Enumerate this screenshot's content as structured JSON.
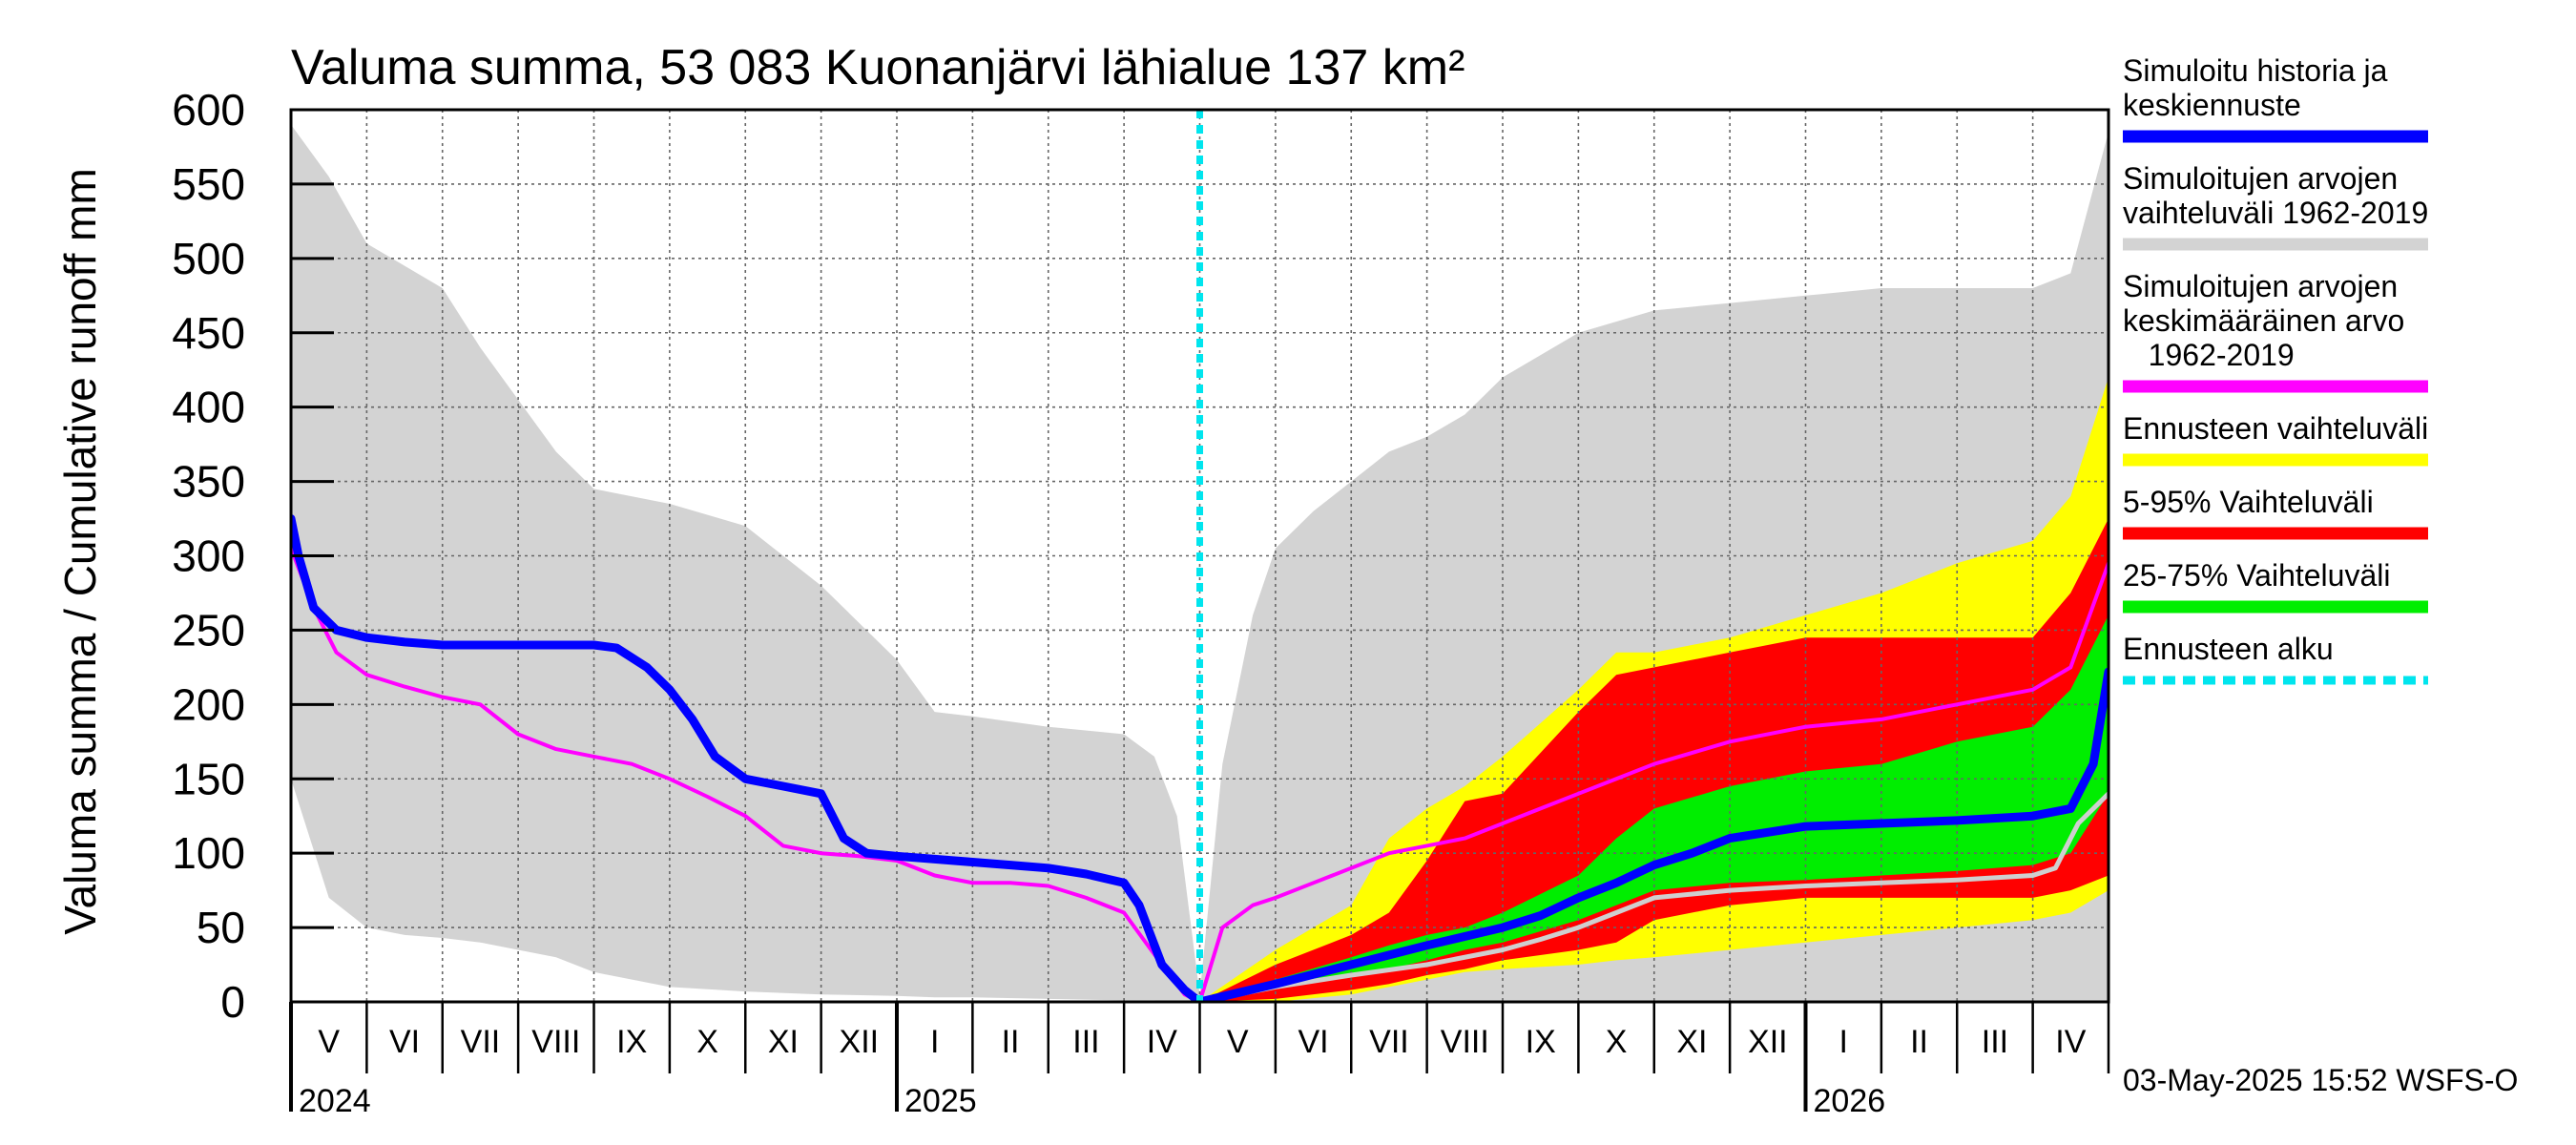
{
  "chart_data": {
    "type": "area",
    "title": "Valuma summa, 53 083 Kuonanjärvi lähialue 137 km²",
    "ylabel": "Valuma summa / Cumulative runoff    mm",
    "ylim": [
      0,
      600
    ],
    "yticks": [
      0,
      50,
      100,
      150,
      200,
      250,
      300,
      350,
      400,
      450,
      500,
      550,
      600
    ],
    "grid": true,
    "x_axis": {
      "unit": "month index from 1 May 2024",
      "range": [
        0,
        24
      ],
      "months": [
        "V",
        "VI",
        "VII",
        "VIII",
        "IX",
        "X",
        "XI",
        "XII",
        "I",
        "II",
        "III",
        "IV",
        "V",
        "VI",
        "VII",
        "VIII",
        "IX",
        "X",
        "XI",
        "XII",
        "I",
        "II",
        "III",
        "IV"
      ],
      "years": [
        {
          "label": "2024",
          "x": 0
        },
        {
          "label": "2025",
          "x": 8
        },
        {
          "label": "2026",
          "x": 20
        }
      ]
    },
    "forecast_start": 12,
    "colors": {
      "hist_range": "#d3d3d3",
      "forecast_range": "#ffff00",
      "p5_95": "#ff0000",
      "p25_75": "#00ee00",
      "simulated": "#0000ff",
      "mean": "#ff00ff",
      "median_forecast": "#cfcfcf",
      "forecast_start": "#00e5ee"
    },
    "series": [
      {
        "name": "hist_range",
        "kind": "band",
        "x": [
          0,
          0.5,
          1,
          1.5,
          2,
          2.5,
          3,
          3.5,
          4,
          5,
          6,
          7,
          8,
          8.5,
          9,
          10,
          11,
          11.4,
          11.7,
          12,
          12.3,
          12.7,
          13,
          13.5,
          14,
          14.5,
          15,
          15.5,
          16,
          17,
          18,
          19,
          20,
          21,
          22,
          23,
          23.5,
          24
        ],
        "upper": [
          590,
          555,
          510,
          495,
          480,
          440,
          405,
          370,
          345,
          335,
          320,
          280,
          230,
          195,
          192,
          185,
          180,
          165,
          125,
          5,
          160,
          260,
          305,
          330,
          350,
          370,
          380,
          395,
          420,
          450,
          465,
          470,
          475,
          480,
          480,
          480,
          490,
          585
        ],
        "lower": [
          150,
          70,
          50,
          45,
          43,
          40,
          35,
          30,
          20,
          10,
          7,
          5,
          4,
          3,
          3,
          2,
          1,
          1,
          0,
          0,
          0,
          0,
          0,
          0,
          0,
          0,
          0,
          0,
          0,
          0,
          0,
          0,
          0,
          0,
          0,
          0,
          0,
          0
        ]
      },
      {
        "name": "forecast_range",
        "kind": "band",
        "x": [
          12,
          13,
          14,
          14.5,
          15,
          15.5,
          16,
          17,
          17.5,
          18,
          19,
          20,
          21,
          22,
          23,
          23.5,
          24
        ],
        "upper": [
          0,
          35,
          65,
          110,
          130,
          145,
          165,
          210,
          235,
          235,
          245,
          260,
          275,
          295,
          310,
          340,
          420
        ],
        "lower": [
          0,
          0,
          5,
          10,
          15,
          20,
          22,
          25,
          28,
          30,
          35,
          40,
          45,
          50,
          55,
          60,
          75
        ]
      },
      {
        "name": "p5_95",
        "kind": "band",
        "x": [
          12,
          13,
          14,
          14.5,
          15,
          15.5,
          16,
          17,
          17.5,
          18,
          19,
          20,
          21,
          22,
          23,
          23.5,
          24
        ],
        "upper": [
          0,
          25,
          45,
          60,
          95,
          135,
          140,
          195,
          220,
          225,
          235,
          245,
          245,
          245,
          245,
          275,
          325
        ],
        "lower": [
          0,
          2,
          8,
          12,
          18,
          22,
          28,
          35,
          40,
          55,
          65,
          70,
          70,
          70,
          70,
          75,
          85
        ]
      },
      {
        "name": "p25_75",
        "kind": "band",
        "x": [
          12,
          13,
          14,
          14.5,
          15,
          15.5,
          16,
          17,
          17.5,
          18,
          19,
          20,
          21,
          22,
          23,
          23.5,
          24
        ],
        "upper": [
          0,
          15,
          30,
          38,
          45,
          50,
          60,
          85,
          110,
          130,
          145,
          155,
          160,
          175,
          185,
          210,
          260
        ],
        "lower": [
          0,
          10,
          18,
          22,
          28,
          35,
          40,
          55,
          65,
          75,
          80,
          82,
          85,
          88,
          92,
          100,
          140
        ]
      },
      {
        "name": "Simuloitujen arvojen keskimääräinen arvo 1962-2019",
        "kind": "line",
        "x": [
          0,
          0.3,
          0.6,
          1,
          1.5,
          2,
          2.5,
          3,
          3.5,
          4,
          4.5,
          5,
          5.5,
          6,
          6.5,
          7,
          7.5,
          8,
          8.5,
          9,
          9.5,
          10,
          10.5,
          11,
          11.5,
          11.8,
          12,
          12.3,
          12.7,
          13,
          13.5,
          14,
          14.5,
          15,
          15.5,
          16,
          16.5,
          17,
          17.5,
          18,
          19,
          20,
          21,
          22,
          23,
          23.5,
          24
        ],
        "y": [
          305,
          265,
          235,
          220,
          212,
          205,
          200,
          180,
          170,
          165,
          160,
          150,
          138,
          125,
          105,
          100,
          98,
          95,
          85,
          80,
          80,
          78,
          70,
          60,
          25,
          5,
          0,
          50,
          65,
          70,
          80,
          90,
          100,
          105,
          110,
          120,
          130,
          140,
          150,
          160,
          175,
          185,
          190,
          200,
          210,
          225,
          295
        ]
      },
      {
        "name": "Simuloitu historia ja keskiennuste",
        "kind": "line",
        "x": [
          0,
          0.1,
          0.3,
          0.6,
          1,
          1.5,
          2,
          3,
          3.5,
          4,
          4.3,
          4.7,
          5,
          5.3,
          5.6,
          6,
          6.5,
          7,
          7.3,
          7.6,
          8,
          8.5,
          9,
          9.5,
          10,
          10.5,
          11,
          11.2,
          11.5,
          11.8,
          12,
          13,
          14,
          15,
          16,
          16.5,
          17,
          17.5,
          18,
          18.5,
          19,
          20,
          21,
          22,
          23,
          23.5,
          23.8,
          24
        ],
        "y": [
          325,
          300,
          265,
          250,
          245,
          242,
          240,
          240,
          240,
          240,
          238,
          225,
          210,
          190,
          165,
          150,
          145,
          140,
          110,
          100,
          98,
          96,
          94,
          92,
          90,
          86,
          80,
          65,
          25,
          8,
          0,
          12,
          25,
          38,
          50,
          58,
          70,
          80,
          92,
          100,
          110,
          118,
          120,
          122,
          125,
          130,
          160,
          222
        ]
      },
      {
        "name": "median_forecast",
        "kind": "line",
        "x": [
          12,
          13,
          14,
          15,
          16,
          16.5,
          17,
          17.5,
          18,
          19,
          20,
          21,
          22,
          23,
          23.3,
          23.6,
          24
        ],
        "y": [
          0,
          10,
          18,
          25,
          35,
          42,
          50,
          60,
          70,
          75,
          78,
          80,
          82,
          85,
          90,
          120,
          140
        ]
      }
    ],
    "legend": [
      {
        "key": "simulated",
        "lines": [
          "Simuloitu historia ja",
          "keskiennuste"
        ],
        "style": "line",
        "color": "#0000ff"
      },
      {
        "key": "hist_range",
        "lines": [
          "Simuloitujen arvojen",
          "vaihteluväli 1962-2019"
        ],
        "style": "line",
        "color": "#d3d3d3"
      },
      {
        "key": "mean",
        "lines": [
          "Simuloitujen arvojen",
          "keskimääräinen arvo",
          "   1962-2019"
        ],
        "style": "line",
        "color": "#ff00ff"
      },
      {
        "key": "forecast_range",
        "lines": [
          "Ennusteen vaihteluväli"
        ],
        "style": "line",
        "color": "#ffff00"
      },
      {
        "key": "p5_95",
        "lines": [
          "5-95% Vaihteluväli"
        ],
        "style": "line",
        "color": "#ff0000"
      },
      {
        "key": "p25_75",
        "lines": [
          "25-75% Vaihteluväli"
        ],
        "style": "line",
        "color": "#00ee00"
      },
      {
        "key": "forecast_start",
        "lines": [
          "Ennusteen alku"
        ],
        "style": "dashed",
        "color": "#00e5ee"
      }
    ],
    "footer": "03-May-2025 15:52 WSFS-O"
  }
}
